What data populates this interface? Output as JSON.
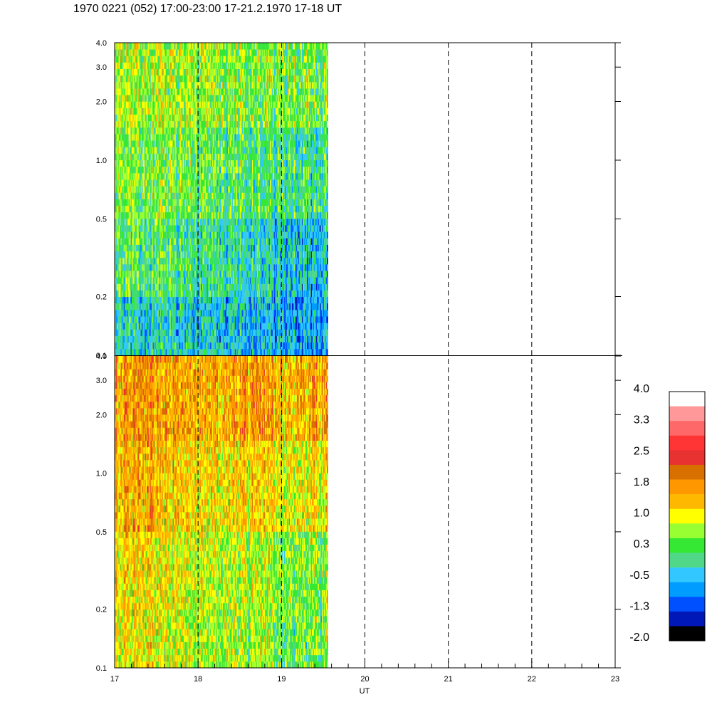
{
  "title": "1970 0221 (052) 17:00-23:00 17-21.2.1970  17-18 UT",
  "chart_data": {
    "type": "heatmap",
    "xlabel": "UT",
    "xlim": [
      17,
      23
    ],
    "x_ticks": [
      "17",
      "18",
      "19",
      "20",
      "21",
      "22",
      "23"
    ],
    "x_minor_step": 0.2,
    "data_end_x": 19.55,
    "dashed_vlines": [
      18,
      19,
      20,
      21,
      22
    ],
    "grid": false,
    "y_scale": "log",
    "panels": [
      {
        "ylim": [
          0.1,
          4.0
        ],
        "y_ticks": [
          "0.1",
          "0.2",
          "0.5",
          "1.0",
          "2.0",
          "3.0",
          "4.0"
        ],
        "y_tick_values": [
          0.1,
          0.2,
          0.5,
          1.0,
          2.0,
          3.0,
          4.0
        ],
        "levels": [
          {
            "y_top": 4.0,
            "level_18": 0.6,
            "level_1930": 0.4
          },
          {
            "y_top": 1.5,
            "level_18": 0.3,
            "level_1930": 0.0
          },
          {
            "y_top": 0.5,
            "level_18": 0.0,
            "level_1930": -0.5
          },
          {
            "y_top": 0.2,
            "level_18": -0.4,
            "level_1930": -0.7
          }
        ]
      },
      {
        "ylim": [
          0.1,
          4.0
        ],
        "y_ticks": [
          "0.1",
          "0.2",
          "0.5",
          "1.0",
          "2.0",
          "3.0",
          "4.0"
        ],
        "y_tick_values": [
          0.1,
          0.2,
          0.5,
          1.0,
          2.0,
          3.0,
          4.0
        ],
        "levels": [
          {
            "y_top": 4.0,
            "level_18": 1.6,
            "level_1930": 1.5
          },
          {
            "y_top": 1.5,
            "level_18": 1.3,
            "level_1930": 1.0
          },
          {
            "y_top": 0.5,
            "level_18": 0.9,
            "level_1930": 0.4
          },
          {
            "y_top": 0.2,
            "level_18": 0.8,
            "level_1930": 0.3
          }
        ]
      }
    ],
    "colorbar": {
      "label_values": [
        "4.0",
        "3.3",
        "2.5",
        "1.8",
        "1.0",
        "0.3",
        "-0.5",
        "-1.3",
        "-2.0"
      ],
      "min": -2.0,
      "max": 4.0,
      "colors_top_to_bottom": [
        "#ffffff",
        "#ff9898",
        "#ff6868",
        "#ff3434",
        "#e83232",
        "#d87000",
        "#ff9800",
        "#ffb800",
        "#ffff00",
        "#98ff32",
        "#34e834",
        "#50d888",
        "#32c8ff",
        "#009cff",
        "#0050ff",
        "#0018b8",
        "#000000"
      ]
    }
  }
}
